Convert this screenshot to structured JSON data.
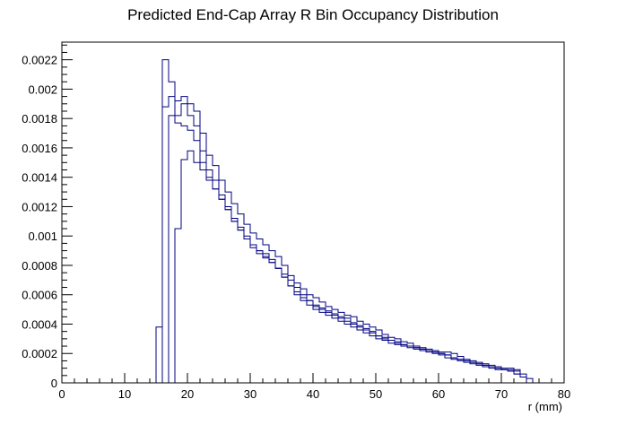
{
  "chart_data": {
    "type": "line",
    "style": "step-histogram",
    "title": "Predicted End-Cap Array R Bin Occupancy Distribution",
    "xlabel": "r (mm)",
    "ylabel": "",
    "xlim": [
      0,
      80
    ],
    "ylim": [
      0,
      0.00232
    ],
    "bin_width": 1,
    "x_ticks": [
      0,
      10,
      20,
      30,
      40,
      50,
      60,
      70,
      80
    ],
    "x_tick_labels": [
      "0",
      "10",
      "20",
      "30",
      "40",
      "50",
      "60",
      "70",
      "80"
    ],
    "y_ticks": [
      0,
      0.0002,
      0.0004,
      0.0006,
      0.0008,
      0.001,
      0.0012,
      0.0014,
      0.0016,
      0.0018,
      0.002,
      0.0022
    ],
    "y_tick_labels": [
      "0",
      "0.0002",
      "0.0004",
      "0.0006",
      "0.0008",
      "0.001",
      "0.0012",
      "0.0014",
      "0.0016",
      "0.0018",
      "0.002",
      "0.0022"
    ],
    "grid": false,
    "legend": "none",
    "line_color": "#000080",
    "series": [
      {
        "x_start": 15,
        "values": [
          0.00038,
          0.0022,
          0.00205,
          0.00192,
          0.00195,
          0.0019,
          0.00185,
          0.0017,
          0.00155,
          0.00148,
          0.00138,
          0.0013,
          0.00122,
          0.00115,
          0.00108,
          0.00102,
          0.00098,
          0.00094,
          0.0009,
          0.00086,
          0.0008,
          0.00073,
          0.00068,
          0.00064,
          0.0006,
          0.00058,
          0.00055,
          0.00052,
          0.0005,
          0.00048,
          0.00046,
          0.00045,
          0.00042,
          0.0004,
          0.00038,
          0.00036,
          0.00033,
          0.00031,
          0.0003,
          0.00028,
          0.00027,
          0.00025,
          0.00024,
          0.00023,
          0.00022,
          0.00021,
          0.00021,
          0.0002,
          0.00018,
          0.00016,
          0.00015,
          0.00014,
          0.00013,
          0.00012,
          0.00011,
          0.0001,
          0.0001,
          9e-05,
          6e-05,
          3e-05
        ]
      },
      {
        "x_start": 16,
        "values": [
          0.00188,
          0.00195,
          0.00182,
          0.0019,
          0.00182,
          0.00175,
          0.00158,
          0.00145,
          0.00138,
          0.00128,
          0.0012,
          0.00112,
          0.00106,
          0.001,
          0.00094,
          0.0009,
          0.00088,
          0.00084,
          0.00078,
          0.00072,
          0.00066,
          0.00062,
          0.00058,
          0.00056,
          0.00053,
          0.00051,
          0.00049,
          0.00047,
          0.00045,
          0.00044,
          0.00041,
          0.00039,
          0.00037,
          0.00035,
          0.00032,
          0.00031,
          0.00029,
          0.00028,
          0.00026,
          0.00025,
          0.00024,
          0.00023,
          0.00022,
          0.00021,
          0.0002,
          0.00019,
          0.00017,
          0.00016,
          0.00015,
          0.00014,
          0.00013,
          0.00012,
          0.00011,
          0.0001,
          9e-05,
          9e-05,
          8e-05,
          4e-05
        ]
      },
      {
        "x_start": 17,
        "values": [
          0.00182,
          0.00177,
          0.00175,
          0.00172,
          0.00165,
          0.0015,
          0.0014,
          0.00132,
          0.00125,
          0.00118,
          0.0011,
          0.00104,
          0.00098,
          0.00092,
          0.00088,
          0.00085,
          0.00082,
          0.00078,
          0.00072,
          0.00066,
          0.0006,
          0.00056,
          0.00053,
          0.0005,
          0.00048,
          0.00046,
          0.00044,
          0.00042,
          0.0004,
          0.00038,
          0.00036,
          0.00034,
          0.00032,
          0.0003,
          0.00029,
          0.00027,
          0.00026,
          0.00025,
          0.00024,
          0.00023,
          0.00022,
          0.00021,
          0.0002,
          0.00019,
          0.00017,
          0.00016,
          0.00015,
          0.00014,
          0.00013,
          0.00012,
          0.00011,
          0.0001,
          9e-05,
          9e-05,
          8e-05,
          6e-05,
          4e-05
        ]
      },
      {
        "x_start": 18,
        "values": [
          0.00105,
          0.00152,
          0.00158,
          0.0015,
          0.00145,
          0.00138,
          0.00132,
          0.00125,
          0.00118,
          0.0011,
          0.00104,
          0.00098,
          0.00094,
          0.0009,
          0.00086,
          0.00082,
          0.00078,
          0.00074,
          0.0007,
          0.00065,
          0.0006,
          0.00056,
          0.00052,
          0.0005,
          0.00048,
          0.00046,
          0.00044,
          0.00042,
          0.0004,
          0.00038,
          0.00036,
          0.00034,
          0.00032,
          0.0003,
          0.00029,
          0.00027,
          0.00026,
          0.00025,
          0.00024,
          0.00023,
          0.00022,
          0.00021,
          0.0002,
          0.00019,
          0.00017,
          0.00016,
          0.00015,
          0.00014,
          0.00013,
          0.00012,
          0.00011,
          0.0001,
          9e-05,
          8e-05,
          6e-05,
          4e-05
        ]
      }
    ]
  }
}
